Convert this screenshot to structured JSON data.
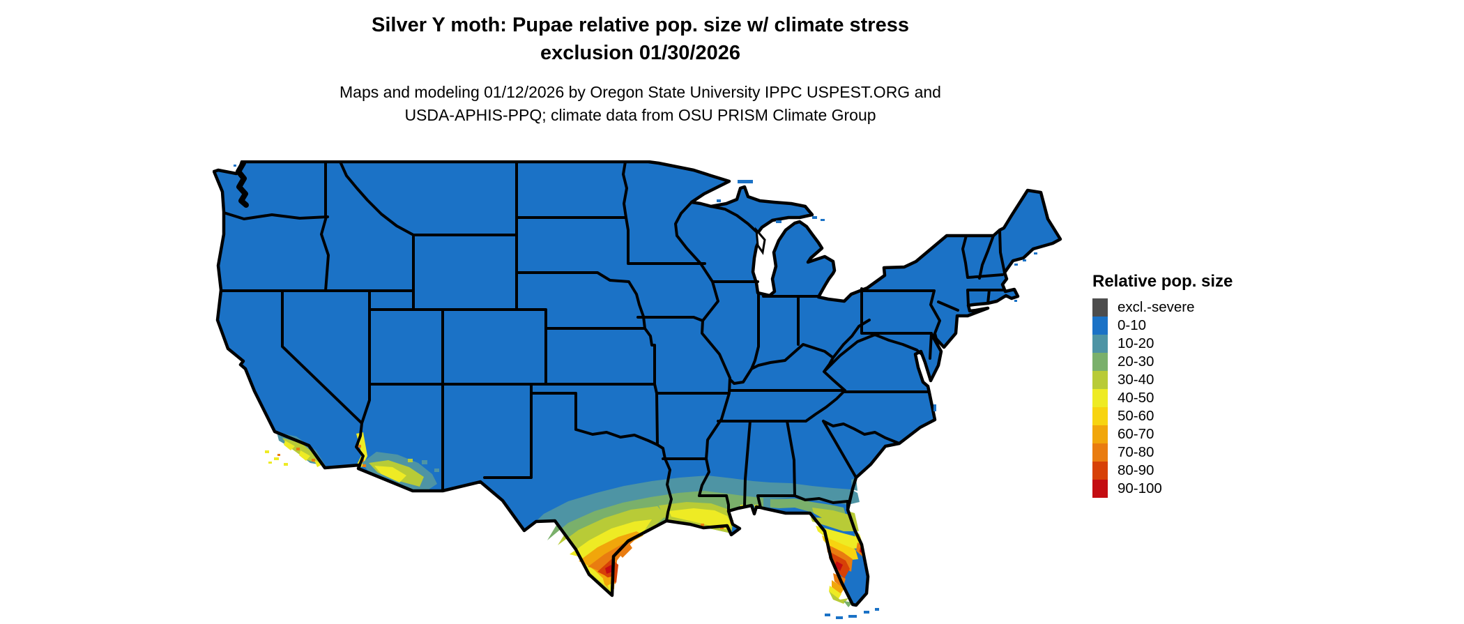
{
  "title": {
    "line1": "Silver Y moth: Pupae relative pop. size w/ climate stress",
    "line2": "exclusion 01/30/2026"
  },
  "subtitle": {
    "line1": "Maps and modeling 01/12/2026 by Oregon State University IPPC USPEST.ORG and",
    "line2": "USDA-APHIS-PPQ; climate data from OSU PRISM Climate Group"
  },
  "legend": {
    "title": "Relative pop. size",
    "items": [
      {
        "label": "excl.-severe",
        "color": "#4d4d4d"
      },
      {
        "label": "0-10",
        "color": "#1b72c6"
      },
      {
        "label": "10-20",
        "color": "#4e94a4"
      },
      {
        "label": "20-30",
        "color": "#7ab06b"
      },
      {
        "label": "30-40",
        "color": "#b8cb37"
      },
      {
        "label": "40-50",
        "color": "#eeeb24"
      },
      {
        "label": "50-60",
        "color": "#f7d410"
      },
      {
        "label": "60-70",
        "color": "#f1a60b"
      },
      {
        "label": "70-80",
        "color": "#e97c10"
      },
      {
        "label": "80-90",
        "color": "#d74107"
      },
      {
        "label": "90-100",
        "color": "#c40d12"
      }
    ]
  },
  "map": {
    "region": "Contiguous United States",
    "base_value_class": "0-10",
    "border_color": "#000000",
    "background_color": "#ffffff",
    "hotspots": "south Texas, central Florida, Gulf Coast, southern California, southwest Arizona"
  }
}
